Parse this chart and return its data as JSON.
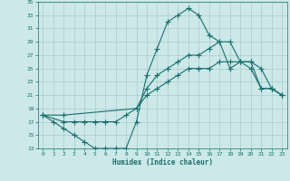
{
  "xlabel": "Humidex (Indice chaleur)",
  "ylabel": "",
  "xlim": [
    -0.5,
    23.5
  ],
  "ylim": [
    13,
    35
  ],
  "xticks": [
    0,
    1,
    2,
    3,
    4,
    5,
    6,
    7,
    8,
    9,
    10,
    11,
    12,
    13,
    14,
    15,
    16,
    17,
    18,
    19,
    20,
    21,
    22,
    23
  ],
  "yticks": [
    13,
    15,
    17,
    19,
    21,
    23,
    25,
    27,
    29,
    31,
    33,
    35
  ],
  "bg_color": "#cce8e8",
  "line_color": "#1a6e6e",
  "grid_color": "#b0d0d0",
  "line1_x": [
    0,
    1,
    2,
    3,
    4,
    5,
    6,
    7,
    8,
    9,
    10,
    11,
    12,
    13,
    14,
    15,
    16,
    17,
    18,
    19,
    20,
    21,
    22,
    23
  ],
  "line1_y": [
    18,
    17,
    16,
    15,
    14,
    13,
    13,
    13,
    13,
    17,
    24,
    28,
    32,
    33,
    34,
    33,
    30,
    29,
    25,
    26,
    25,
    22,
    22,
    21
  ],
  "line2_x": [
    0,
    2,
    3,
    4,
    5,
    6,
    7,
    8,
    9,
    10,
    11,
    12,
    13,
    14,
    15,
    16,
    17,
    18,
    19,
    20,
    21,
    22,
    23
  ],
  "line2_y": [
    18,
    17,
    17,
    17,
    17,
    17,
    17,
    18,
    19,
    21,
    22,
    23,
    24,
    25,
    25,
    25,
    26,
    26,
    26,
    26,
    22,
    22,
    21
  ],
  "line3_x": [
    0,
    2,
    9,
    10,
    11,
    12,
    13,
    14,
    15,
    16,
    17,
    18,
    19,
    20,
    21,
    22,
    23
  ],
  "line3_y": [
    18,
    18,
    19,
    22,
    24,
    25,
    26,
    27,
    27,
    28,
    29,
    29,
    26,
    26,
    25,
    22,
    21
  ]
}
